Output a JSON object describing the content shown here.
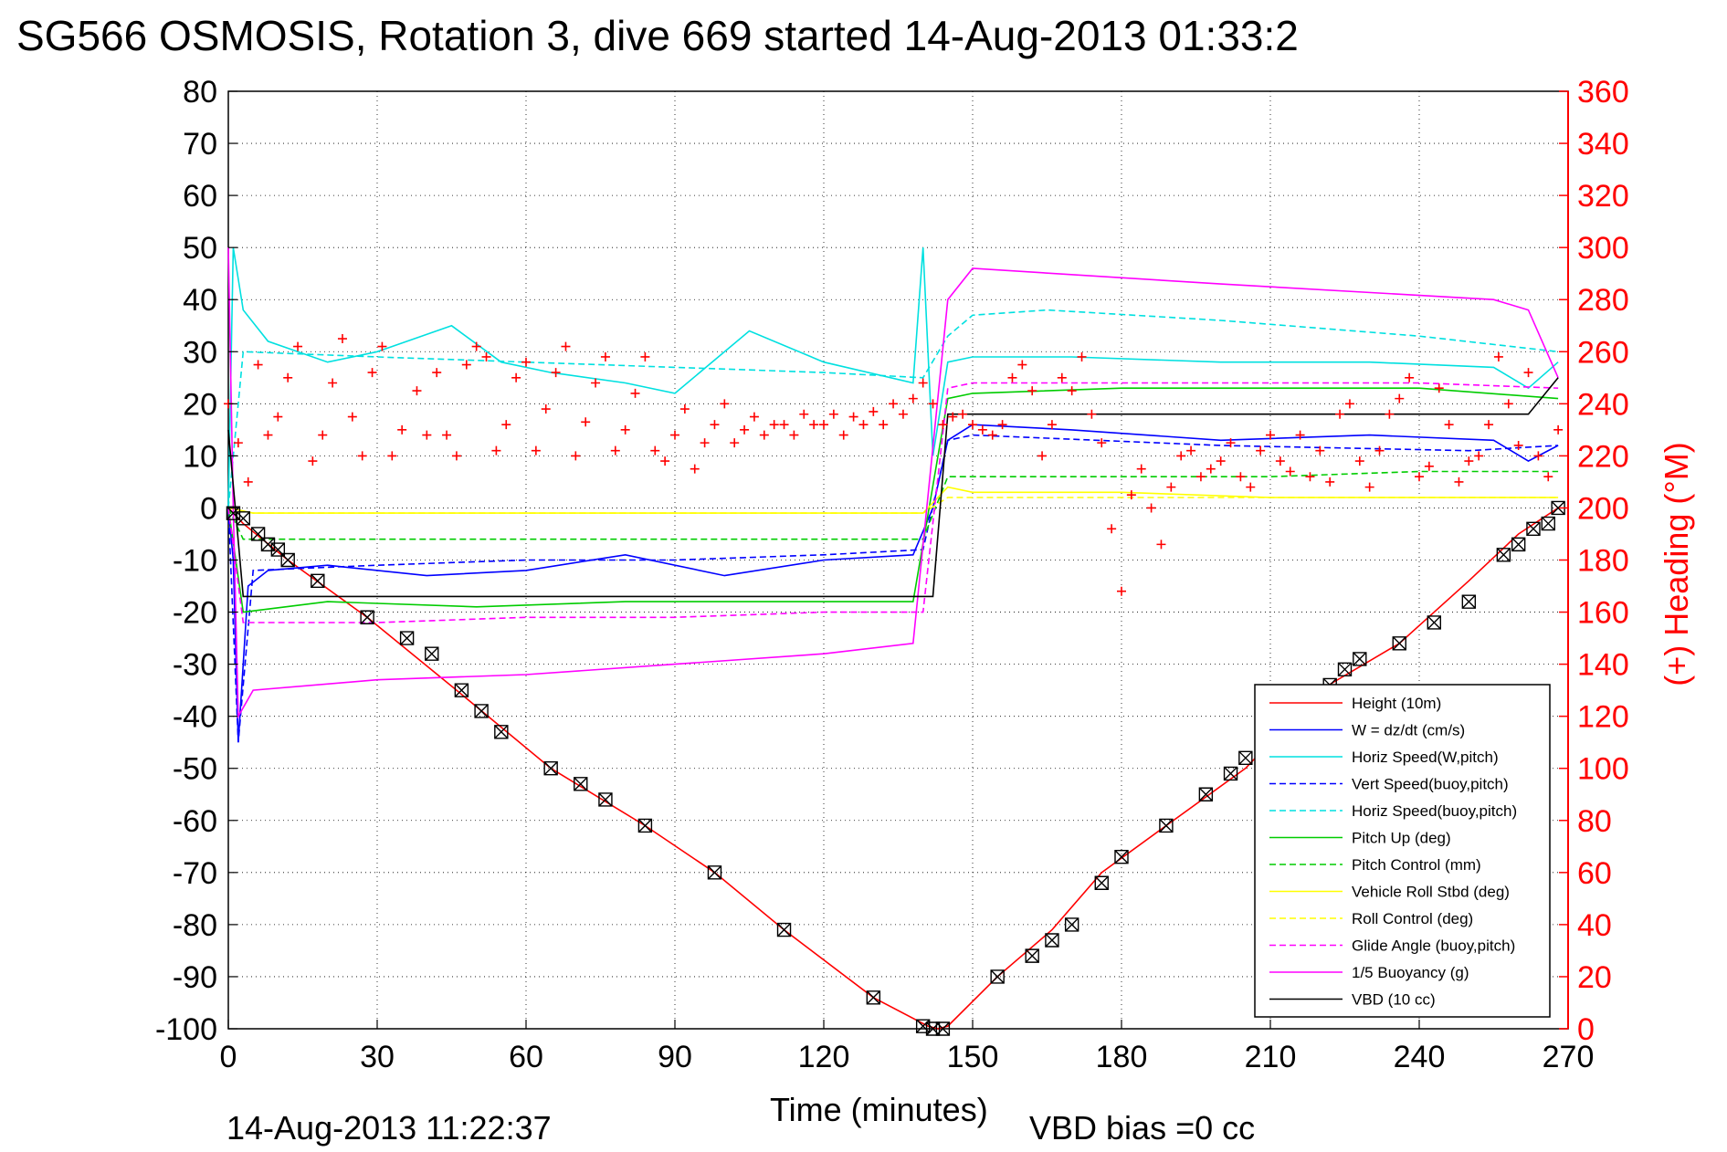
{
  "chart_data": {
    "type": "line",
    "title": "SG566 OSMOSIS, Rotation 3, dive 669 started 14-Aug-2013 01:33:2",
    "xlabel": "Time (minutes)",
    "ylabel_right": "(+) Heading (°M)",
    "footer_left": "14-Aug-2013 11:22:37",
    "footer_right": "VBD bias =0 cc",
    "xlim": [
      0,
      270
    ],
    "ylim": [
      -100,
      80
    ],
    "y2lim": [
      0,
      360
    ],
    "grid": true,
    "legend_position": "bottom-right",
    "x_ticks": [
      "0",
      "30",
      "60",
      "90",
      "120",
      "150",
      "180",
      "210",
      "240",
      "270"
    ],
    "y_ticks": [
      "80",
      "70",
      "60",
      "50",
      "40",
      "30",
      "20",
      "10",
      "0",
      "-10",
      "-20",
      "-30",
      "-40",
      "-50",
      "-60",
      "-70",
      "-80",
      "-90",
      "-100"
    ],
    "y2_ticks": [
      "360",
      "340",
      "320",
      "300",
      "280",
      "260",
      "240",
      "220",
      "200",
      "180",
      "160",
      "140",
      "120",
      "100",
      "80",
      "60",
      "40",
      "20",
      "0"
    ],
    "series": [
      {
        "name": "Height (10m)",
        "color": "#ff0000",
        "style": "solid",
        "x": [
          0,
          3,
          12,
          28,
          46,
          65,
          84,
          98,
          112,
          130,
          141,
          143,
          145,
          155,
          166,
          176,
          189,
          205,
          220,
          236,
          250,
          260,
          268
        ],
        "y": [
          0,
          -3,
          -10,
          -21,
          -35,
          -50,
          -61,
          -70,
          -81,
          -94,
          -99.5,
          -100,
          -99.5,
          -90,
          -81,
          -70,
          -61,
          -50,
          -35,
          -26,
          -14,
          -5,
          0
        ]
      },
      {
        "name": "W = dz/dt (cm/s)",
        "color": "#0000ff",
        "style": "solid",
        "x": [
          0,
          1,
          2,
          4,
          8,
          20,
          40,
          60,
          80,
          100,
          120,
          138,
          142,
          145,
          150,
          170,
          200,
          230,
          255,
          262,
          268
        ],
        "y": [
          0,
          -10,
          -45,
          -15,
          -12,
          -11,
          -13,
          -12,
          -9,
          -13,
          -10,
          -9,
          0,
          13,
          16,
          15,
          13,
          14,
          13,
          9,
          12
        ]
      },
      {
        "name": "Horiz Speed(W,pitch)",
        "color": "#00e0e0",
        "style": "solid",
        "x": [
          0,
          1,
          3,
          8,
          20,
          30,
          45,
          55,
          65,
          80,
          90,
          105,
          120,
          138,
          140,
          142,
          145,
          150,
          170,
          200,
          230,
          255,
          262,
          268
        ],
        "y": [
          0,
          50,
          38,
          32,
          28,
          30,
          35,
          28,
          26,
          24,
          22,
          34,
          28,
          24,
          50,
          10,
          28,
          29,
          29,
          28,
          28,
          27,
          23,
          28
        ]
      },
      {
        "name": "Vert Speed(buoy,pitch)",
        "color": "#0000ff",
        "style": "dashed",
        "x": [
          0,
          2,
          5,
          30,
          60,
          90,
          120,
          140,
          145,
          150,
          200,
          250,
          268
        ],
        "y": [
          0,
          -45,
          -12,
          -11,
          -10,
          -10,
          -9,
          -8,
          13,
          14,
          12,
          11,
          12
        ]
      },
      {
        "name": "Horiz Speed(buoy,pitch)",
        "color": "#00e0e0",
        "style": "dashed",
        "x": [
          0,
          3,
          30,
          60,
          90,
          120,
          140,
          145,
          150,
          165,
          200,
          240,
          268
        ],
        "y": [
          0,
          30,
          29,
          28,
          27,
          26,
          25,
          33,
          37,
          38,
          36,
          33,
          30
        ]
      },
      {
        "name": "Pitch Up (deg)",
        "color": "#00cc00",
        "style": "solid",
        "x": [
          0,
          3,
          20,
          50,
          80,
          110,
          138,
          145,
          150,
          180,
          210,
          240,
          268
        ],
        "y": [
          0,
          -20,
          -18,
          -19,
          -18,
          -18,
          -18,
          21,
          22,
          23,
          23,
          23,
          21
        ]
      },
      {
        "name": "Pitch Control (mm)",
        "color": "#00cc00",
        "style": "dashed",
        "x": [
          0,
          3,
          30,
          60,
          90,
          120,
          140,
          145,
          150,
          180,
          210,
          240,
          268
        ],
        "y": [
          0,
          -6,
          -6,
          -6,
          -6,
          -6,
          -6,
          6,
          6,
          6,
          6,
          7,
          7
        ]
      },
      {
        "name": "Vehicle Roll Stbd (deg)",
        "color": "#ffff00",
        "style": "solid",
        "x": [
          0,
          5,
          30,
          60,
          90,
          120,
          140,
          145,
          150,
          180,
          210,
          240,
          268
        ],
        "y": [
          0,
          -1,
          -1,
          -1,
          -1,
          -1,
          -1,
          4,
          3,
          3,
          2,
          2,
          2
        ]
      },
      {
        "name": "Roll Control (deg)",
        "color": "#ffff00",
        "style": "dashed",
        "x": [
          0,
          5,
          60,
          120,
          140,
          145,
          200,
          268
        ],
        "y": [
          0,
          -1,
          -1,
          -1,
          -1,
          2,
          2,
          2
        ]
      },
      {
        "name": "Glide Angle (buoy,pitch)",
        "color": "#ff00ff",
        "style": "dashed",
        "x": [
          0,
          3,
          30,
          60,
          90,
          120,
          140,
          145,
          150,
          180,
          210,
          240,
          268
        ],
        "y": [
          0,
          -22,
          -22,
          -21,
          -21,
          -20,
          -20,
          23,
          24,
          24,
          24,
          24,
          23
        ]
      },
      {
        "name": "1/5 Buoyancy (g)",
        "color": "#ff00ff",
        "style": "solid",
        "x": [
          0,
          1,
          2,
          5,
          30,
          60,
          90,
          120,
          138,
          145,
          150,
          200,
          255,
          262,
          268
        ],
        "y": [
          50,
          0,
          -40,
          -35,
          -33,
          -32,
          -30,
          -28,
          -26,
          40,
          46,
          43,
          40,
          38,
          25
        ]
      },
      {
        "name": "VBD (10 cc)",
        "color": "#000000",
        "style": "solid",
        "x": [
          0,
          3,
          30,
          60,
          90,
          120,
          142,
          145,
          200,
          262,
          268
        ],
        "y": [
          15,
          -17,
          -17,
          -17,
          -17,
          -17,
          -17,
          18,
          18,
          18,
          25
        ]
      }
    ],
    "heading_deg": {
      "x": [
        0,
        2,
        4,
        6,
        8,
        10,
        12,
        14,
        17,
        19,
        21,
        23,
        25,
        27,
        29,
        31,
        33,
        35,
        38,
        40,
        42,
        44,
        46,
        48,
        50,
        52,
        54,
        56,
        58,
        60,
        62,
        64,
        66,
        68,
        70,
        72,
        74,
        76,
        78,
        80,
        82,
        84,
        86,
        88,
        90,
        92,
        94,
        96,
        98,
        100,
        102,
        104,
        106,
        108,
        110,
        112,
        114,
        116,
        118,
        120,
        122,
        124,
        126,
        128,
        130,
        132,
        134,
        136,
        138,
        140,
        142,
        144,
        146,
        148,
        150,
        152,
        154,
        156,
        158,
        160,
        162,
        164,
        166,
        168,
        170,
        172,
        174,
        176,
        178,
        180,
        182,
        184,
        186,
        188,
        190,
        192,
        194,
        196,
        198,
        200,
        202,
        204,
        206,
        208,
        210,
        212,
        214,
        216,
        218,
        220,
        222,
        224,
        226,
        228,
        230,
        232,
        234,
        236,
        238,
        240,
        242,
        244,
        246,
        248,
        250,
        252,
        254,
        256,
        258,
        260,
        262,
        264,
        266,
        268
      ],
      "y": [
        240,
        225,
        210,
        255,
        228,
        235,
        250,
        262,
        218,
        228,
        248,
        265,
        235,
        220,
        252,
        262,
        220,
        230,
        245,
        228,
        252,
        228,
        220,
        255,
        262,
        258,
        222,
        232,
        250,
        256,
        222,
        238,
        252,
        262,
        220,
        233,
        248,
        258,
        222,
        230,
        244,
        258,
        222,
        218,
        228,
        238,
        215,
        225,
        232,
        240,
        225,
        230,
        235,
        228,
        232,
        232,
        228,
        236,
        232,
        232,
        236,
        228,
        235,
        232,
        237,
        232,
        240,
        236,
        242,
        248,
        240,
        232,
        235,
        236,
        232,
        230,
        228,
        232,
        250,
        255,
        245,
        220,
        232,
        250,
        245,
        258,
        236,
        225,
        192,
        168,
        205,
        215,
        200,
        186,
        208,
        220,
        222,
        212,
        215,
        218,
        225,
        212,
        208,
        222,
        228,
        218,
        214,
        228,
        212,
        222,
        210,
        236,
        240,
        218,
        208,
        222,
        236,
        242,
        250,
        212,
        216,
        246,
        232,
        210,
        218,
        220,
        232,
        258,
        240,
        224,
        252,
        220,
        212,
        230
      ]
    },
    "markers": {
      "x": [
        1,
        3,
        6,
        8,
        10,
        12,
        18,
        28,
        36,
        41,
        47,
        51,
        55,
        65,
        71,
        76,
        84,
        98,
        112,
        130,
        140,
        142,
        144,
        155,
        162,
        166,
        170,
        176,
        180,
        189,
        197,
        202,
        205,
        210,
        214,
        219,
        222,
        225,
        228,
        236,
        243,
        250,
        257,
        260,
        263,
        266,
        268
      ],
      "y": [
        -1,
        -2,
        -5,
        -7,
        -8,
        -10,
        -14,
        -21,
        -25,
        -28,
        -35,
        -39,
        -43,
        -50,
        -53,
        -56,
        -61,
        -70,
        -81,
        -94,
        -99.5,
        -100,
        -100,
        -90,
        -86,
        -83,
        -80,
        -72,
        -67,
        -61,
        -55,
        -51,
        -48,
        -44,
        -41,
        -38,
        -34,
        -31,
        -29,
        -26,
        -22,
        -18,
        -9,
        -7,
        -4,
        -3,
        0
      ]
    },
    "legend_entries": [
      "Height (10m)",
      "W = dz/dt (cm/s)",
      "Horiz Speed(W,pitch)",
      "Vert Speed(buoy,pitch)",
      "Horiz Speed(buoy,pitch)",
      "Pitch Up (deg)",
      "Pitch Control (mm)",
      "Vehicle Roll Stbd (deg)",
      "Roll Control (deg)",
      "Glide Angle (buoy,pitch)",
      "1/5 Buoyancy (g)",
      "VBD (10 cc)"
    ]
  }
}
